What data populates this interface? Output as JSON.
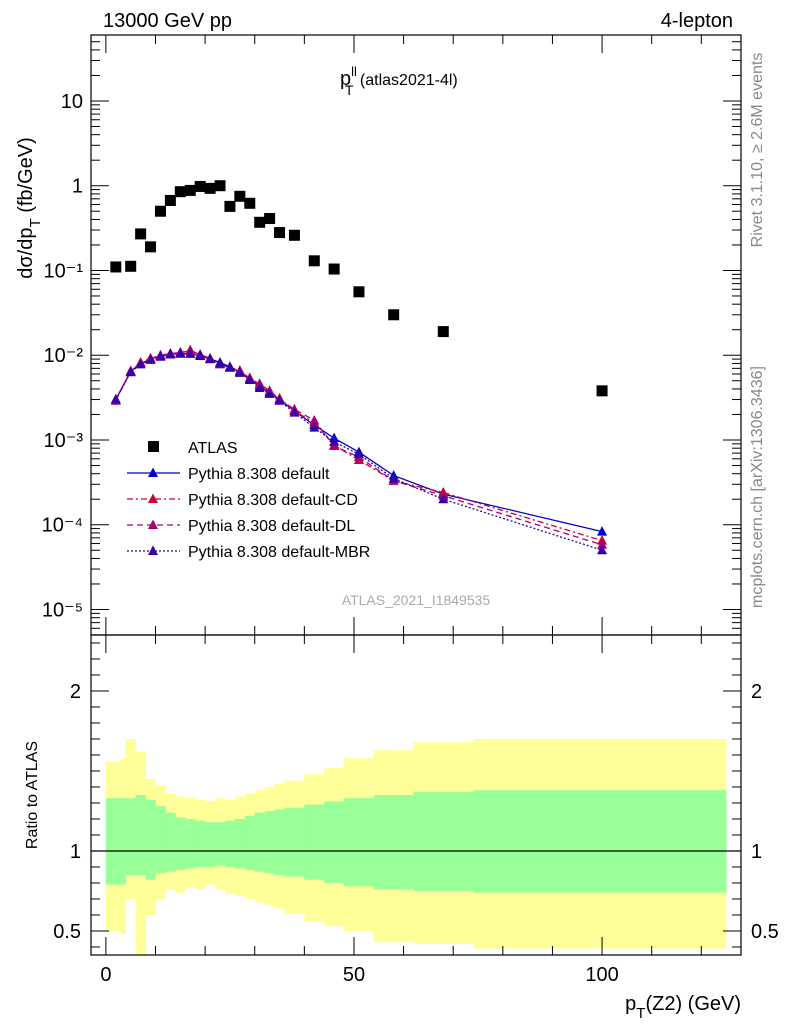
{
  "header": {
    "left": "13000 GeV pp",
    "right": "4-lepton"
  },
  "side_text": {
    "rivet": "Rivet 3.1.10, ≥ 2.6M events",
    "mcplots": "mcplots.cern.ch [arXiv:1306.3436]"
  },
  "watermark": "ATLAS_2021_I1849535",
  "chart_data": [
    {
      "type": "scatter",
      "title_main": "p",
      "title_sup": "ll",
      "title_sub": "T",
      "title_rest": " (atlas2021-4l)",
      "ylabel_main": "dσ/dp",
      "ylabel_sub": "T",
      "ylabel_unit": " (fb/GeV)",
      "yscale": "log",
      "xlim": [
        -3,
        128
      ],
      "ylim": [
        5e-06,
        60
      ],
      "ytick_labels": [
        "10",
        "1",
        "10⁻¹",
        "10⁻²",
        "10⁻³",
        "10⁻⁴",
        "10⁻⁵"
      ],
      "ytick_values": [
        10,
        1,
        0.1,
        0.01,
        0.001,
        0.0001,
        1e-05
      ],
      "legend_position": "lower-left",
      "series": [
        {
          "name": "ATLAS",
          "style": "data",
          "color": "#000000",
          "x": [
            2,
            5,
            7,
            9,
            11,
            13,
            15,
            17,
            19,
            21,
            23,
            25,
            27,
            29,
            31,
            33,
            35,
            38,
            42,
            46,
            51,
            58,
            68,
            100
          ],
          "y": [
            0.11,
            0.112,
            0.27,
            0.19,
            0.5,
            0.67,
            0.85,
            0.88,
            0.98,
            0.93,
            1.0,
            0.57,
            0.75,
            0.62,
            0.37,
            0.41,
            0.28,
            0.26,
            0.13,
            0.104,
            0.056,
            0.03,
            0.019,
            0.0038
          ]
        },
        {
          "name": "Pythia 8.308 default",
          "style": "solid",
          "color": "#0000cc",
          "x": [
            2,
            5,
            7,
            9,
            11,
            13,
            15,
            17,
            19,
            21,
            23,
            25,
            27,
            29,
            31,
            33,
            35,
            38,
            42,
            46,
            51,
            58,
            68,
            100
          ],
          "y": [
            0.003,
            0.0065,
            0.0079,
            0.009,
            0.0098,
            0.0103,
            0.0105,
            0.0104,
            0.0098,
            0.0091,
            0.0082,
            0.0073,
            0.0063,
            0.0052,
            0.0043,
            0.0036,
            0.003,
            0.0022,
            0.0015,
            0.00105,
            0.00072,
            0.00038,
            0.00023,
            8.3e-05
          ]
        },
        {
          "name": "Pythia 8.308 default-CD",
          "style": "dashdot",
          "color": "#cc0033",
          "x": [
            2,
            5,
            7,
            9,
            11,
            13,
            15,
            17,
            19,
            21,
            23,
            25,
            27,
            29,
            31,
            33,
            35,
            38,
            42,
            46,
            51,
            58,
            68,
            100
          ],
          "y": [
            0.003,
            0.0064,
            0.0082,
            0.0092,
            0.0099,
            0.0105,
            0.0107,
            0.0115,
            0.0101,
            0.009,
            0.0079,
            0.0071,
            0.0064,
            0.0054,
            0.0045,
            0.0037,
            0.0031,
            0.0022,
            0.0016,
            0.00087,
            0.00058,
            0.00033,
            0.00024,
            6.5e-05
          ]
        },
        {
          "name": "Pythia 8.308 default-DL",
          "style": "dashed",
          "color": "#aa0077",
          "x": [
            2,
            5,
            7,
            9,
            11,
            13,
            15,
            17,
            19,
            21,
            23,
            25,
            27,
            29,
            31,
            33,
            35,
            38,
            42,
            46,
            51,
            58,
            68,
            100
          ],
          "y": [
            0.0029,
            0.0065,
            0.008,
            0.009,
            0.01,
            0.0104,
            0.0108,
            0.0112,
            0.0102,
            0.0092,
            0.0078,
            0.0072,
            0.0066,
            0.0052,
            0.0046,
            0.0038,
            0.003,
            0.0023,
            0.0017,
            0.00085,
            0.00063,
            0.00033,
            0.00022,
            5.8e-05
          ]
        },
        {
          "name": "Pythia 8.308 default-MBR",
          "style": "dotted",
          "color": "#3300aa",
          "x": [
            2,
            5,
            7,
            9,
            11,
            13,
            15,
            17,
            19,
            21,
            23,
            25,
            27,
            29,
            31,
            33,
            35,
            38,
            42,
            46,
            51,
            58,
            68,
            100
          ],
          "y": [
            0.003,
            0.0063,
            0.0078,
            0.0088,
            0.0096,
            0.0102,
            0.0104,
            0.0104,
            0.0098,
            0.009,
            0.008,
            0.0072,
            0.0062,
            0.0051,
            0.0041,
            0.0035,
            0.0029,
            0.0021,
            0.0014,
            0.00095,
            0.00068,
            0.00035,
            0.0002,
            5e-05
          ]
        }
      ]
    },
    {
      "type": "area",
      "ylabel": "Ratio to ATLAS",
      "xlabel_main": "p",
      "xlabel_sub": "T",
      "xlabel_rest": "(Z2) (GeV)",
      "xlim": [
        -3,
        128
      ],
      "ylim": [
        0.35,
        2.35
      ],
      "xtick_labels": [
        "0",
        "50",
        "100"
      ],
      "xtick_values": [
        0,
        50,
        100
      ],
      "ytick_labels": [
        "2",
        "1",
        "0.5"
      ],
      "ytick_values": [
        2,
        1,
        0.5
      ],
      "reference_line": 1,
      "bands": {
        "bin_edges": [
          0,
          3,
          4,
          6,
          8,
          10,
          12,
          14,
          16,
          18,
          20,
          22,
          24,
          26,
          28,
          30,
          32,
          34,
          36,
          40,
          44,
          48,
          54,
          62,
          74,
          125
        ],
        "stat_lower": [
          0.79,
          0.79,
          0.85,
          0.85,
          0.82,
          0.86,
          0.87,
          0.88,
          0.89,
          0.9,
          0.9,
          0.91,
          0.9,
          0.89,
          0.88,
          0.87,
          0.86,
          0.85,
          0.84,
          0.82,
          0.8,
          0.78,
          0.76,
          0.75,
          0.74
        ],
        "stat_upper": [
          1.33,
          1.33,
          1.33,
          1.35,
          1.32,
          1.28,
          1.24,
          1.21,
          1.2,
          1.19,
          1.18,
          1.18,
          1.19,
          1.2,
          1.22,
          1.24,
          1.25,
          1.26,
          1.27,
          1.29,
          1.31,
          1.33,
          1.35,
          1.37,
          1.38
        ],
        "total_lower": [
          0.5,
          0.48,
          0.7,
          0.35,
          0.6,
          0.7,
          0.76,
          0.74,
          0.77,
          0.76,
          0.79,
          0.76,
          0.73,
          0.72,
          0.7,
          0.68,
          0.66,
          0.64,
          0.61,
          0.56,
          0.53,
          0.5,
          0.43,
          0.42,
          0.39
        ],
        "total_upper": [
          1.56,
          1.58,
          1.7,
          1.62,
          1.45,
          1.41,
          1.36,
          1.34,
          1.33,
          1.32,
          1.31,
          1.33,
          1.32,
          1.34,
          1.36,
          1.38,
          1.4,
          1.42,
          1.44,
          1.48,
          1.52,
          1.58,
          1.63,
          1.68,
          1.7
        ]
      },
      "band_colors": {
        "stat": "#99ff99",
        "total": "#ffff99"
      }
    }
  ]
}
